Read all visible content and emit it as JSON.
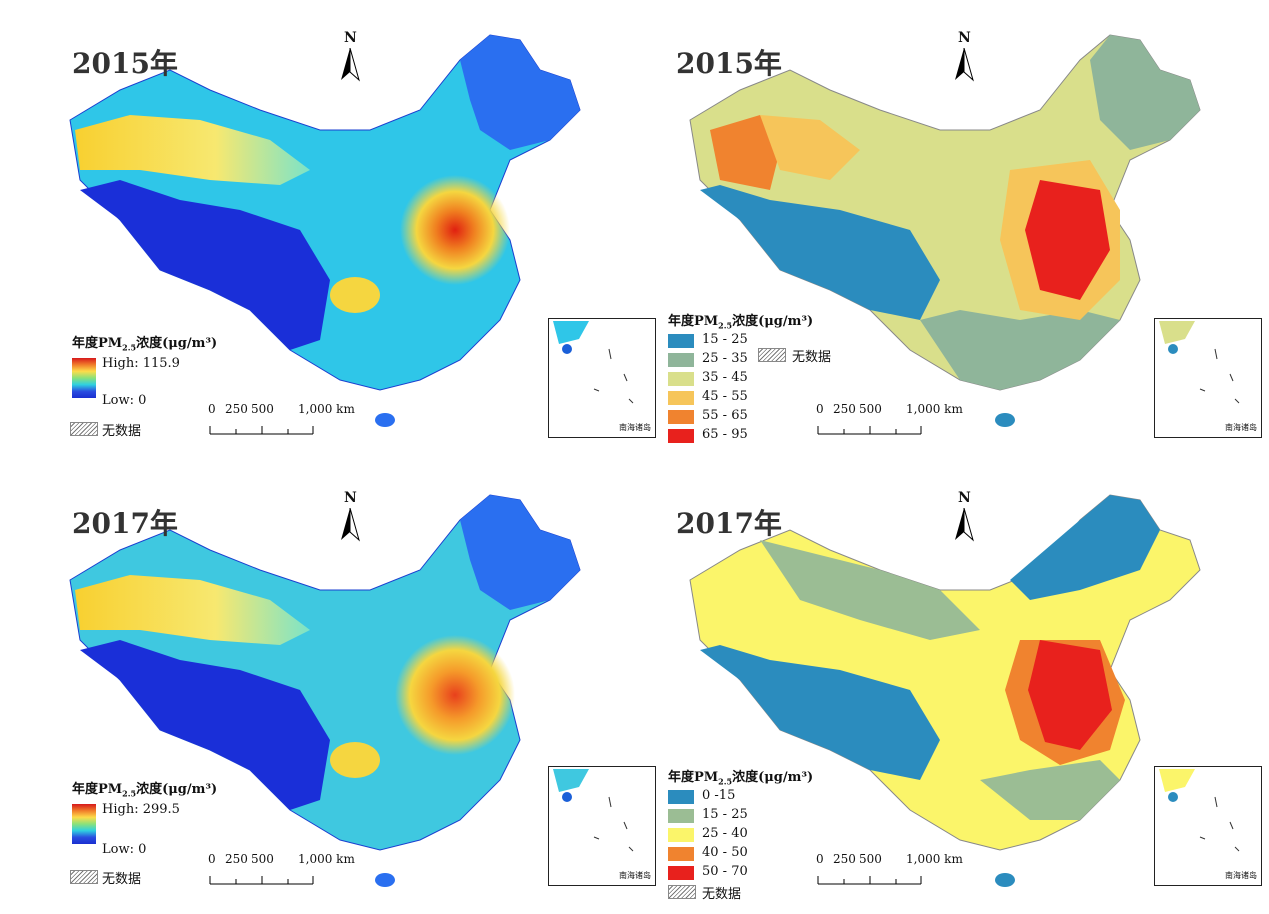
{
  "panels": [
    {
      "year": "2015年",
      "legend_title_pre": "年度PM",
      "legend_title_sub": "2.5",
      "legend_title_post": "浓度(μg/m³)",
      "high": "High: 115.9",
      "low": "Low: 0",
      "nodata": "无数据"
    },
    {
      "year": "2015年",
      "legend_title_pre": "年度PM",
      "legend_title_sub": "2.5",
      "legend_title_post": "浓度(μg/m³)",
      "classes": [
        {
          "label": "15 - 25",
          "color": "#2b8cbe"
        },
        {
          "label": "25 - 35",
          "color": "#8fb59a"
        },
        {
          "label": "35 - 45",
          "color": "#d9df8b"
        },
        {
          "label": "45 - 55",
          "color": "#f6c55a"
        },
        {
          "label": "55 - 65",
          "color": "#f0832f"
        },
        {
          "label": "65 - 95",
          "color": "#e8211d"
        }
      ],
      "nodata": "无数据"
    },
    {
      "year": "2017年",
      "legend_title_pre": "年度PM",
      "legend_title_sub": "2.5",
      "legend_title_post": "浓度(μg/m³)",
      "high": "High: 299.5",
      "low": "Low: 0",
      "nodata": "无数据"
    },
    {
      "year": "2017年",
      "legend_title_pre": "年度PM",
      "legend_title_sub": "2.5",
      "legend_title_post": "浓度(μg/m³)",
      "classes": [
        {
          "label": "0 -15",
          "color": "#2b8cbe"
        },
        {
          "label": "15 - 25",
          "color": "#9bbd94"
        },
        {
          "label": "25 - 40",
          "color": "#fbf56a"
        },
        {
          "label": "40 - 50",
          "color": "#f0832f"
        },
        {
          "label": "50 - 70",
          "color": "#e8211d"
        }
      ],
      "nodata": "无数据"
    }
  ],
  "north_label": "N",
  "scale": {
    "ticks": [
      "0",
      "250",
      "500",
      "1,000 km"
    ]
  },
  "inset_label": "南海诸岛",
  "icons": {
    "north_arrow": "north-arrow-icon"
  }
}
